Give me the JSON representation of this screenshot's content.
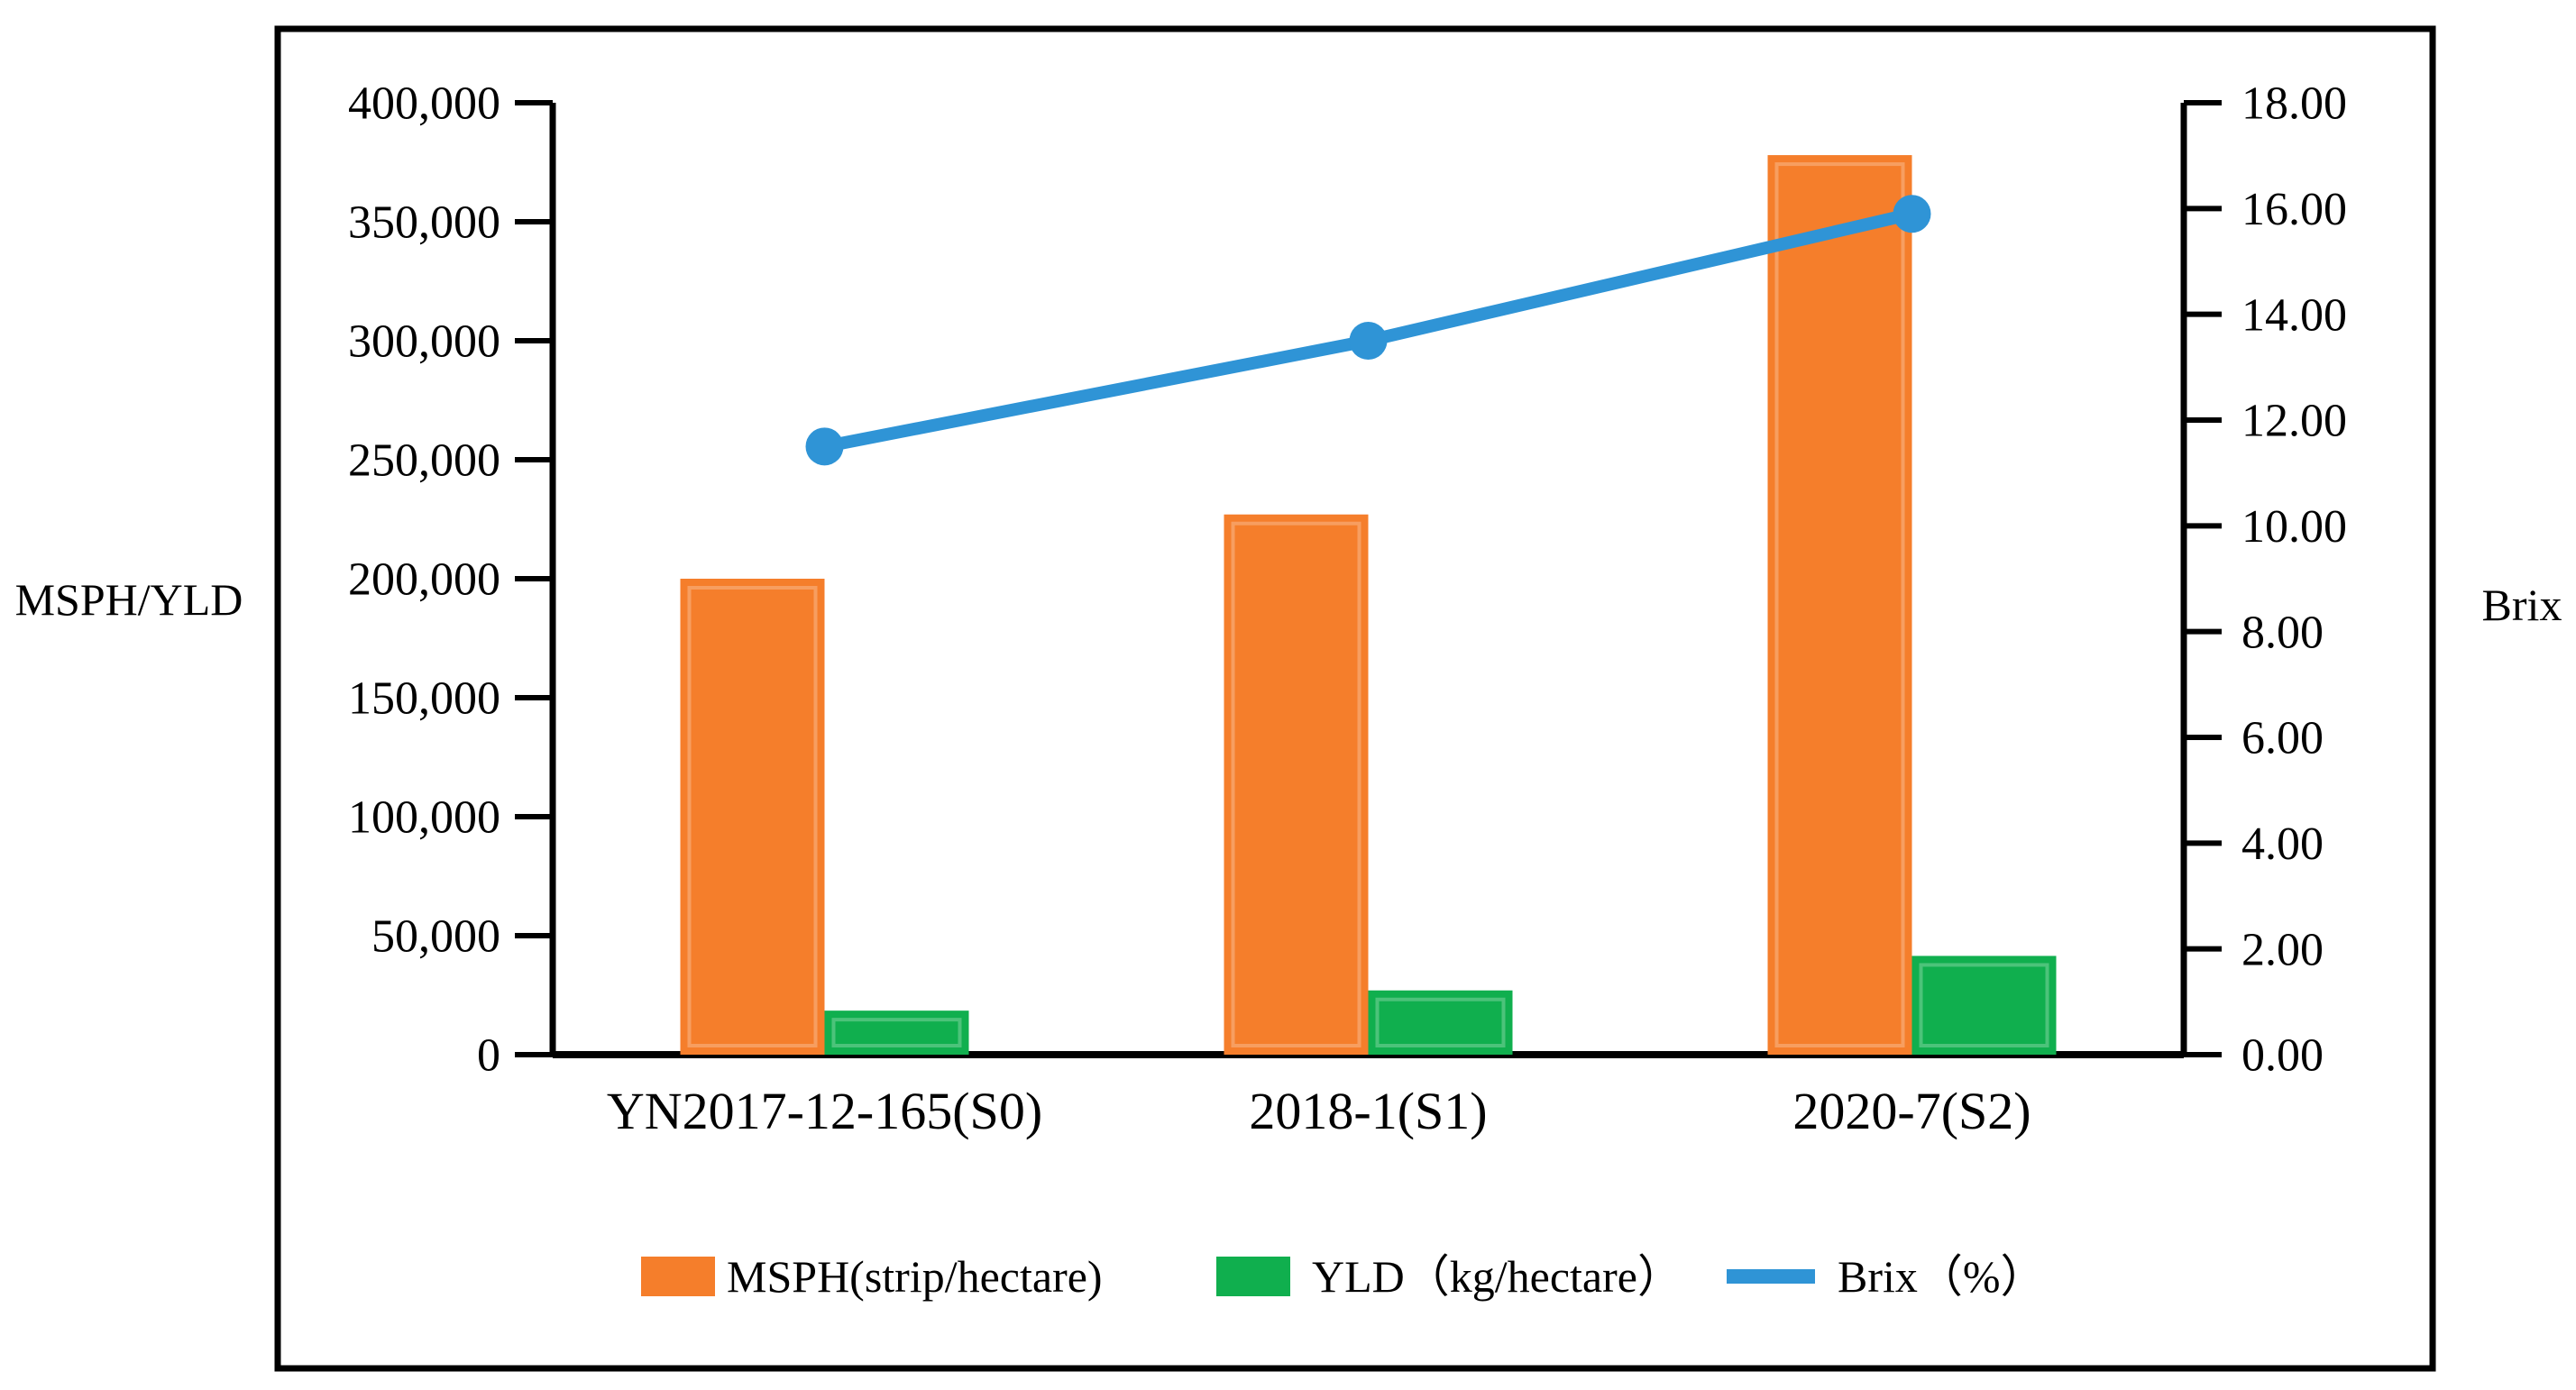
{
  "figure": {
    "background": "#ffffff",
    "border_color": "#000000"
  },
  "chart_data": {
    "type": "bar",
    "subtype": "grouped-bar-with-line-overlay",
    "categories": [
      "YN2017-12-165(S0)",
      "2018-1(S1)",
      "2020-7(S2)"
    ],
    "series": [
      {
        "name": "MSPH(strip/hectare)",
        "kind": "bar",
        "axis": "left",
        "color": "#F57E2B",
        "values": [
          200000,
          227000,
          378000
        ]
      },
      {
        "name": "YLD（kg/hectare）",
        "kind": "bar",
        "axis": "left",
        "color": "#10AF4E",
        "values": [
          18500,
          27000,
          41500
        ]
      },
      {
        "name": "Brix（%）",
        "kind": "line",
        "axis": "right",
        "color": "#2F94D6",
        "values": [
          11.5,
          13.5,
          15.9
        ]
      }
    ],
    "left_axis": {
      "title": "MSPH/YLD",
      "min": 0,
      "max": 400000,
      "step": 50000,
      "tick_labels": [
        "0",
        "50,000",
        "100,000",
        "150,000",
        "200,000",
        "250,000",
        "300,000",
        "350,000",
        "400,000"
      ]
    },
    "right_axis": {
      "title": "Brix",
      "min": 0,
      "max": 18,
      "step": 2,
      "tick_labels": [
        "0.00",
        "2.00",
        "4.00",
        "6.00",
        "8.00",
        "10.00",
        "12.00",
        "14.00",
        "16.00",
        "18.00"
      ]
    },
    "legend_position": "bottom",
    "grid": false,
    "axis_color": "#000000",
    "text_color": "#000000"
  }
}
